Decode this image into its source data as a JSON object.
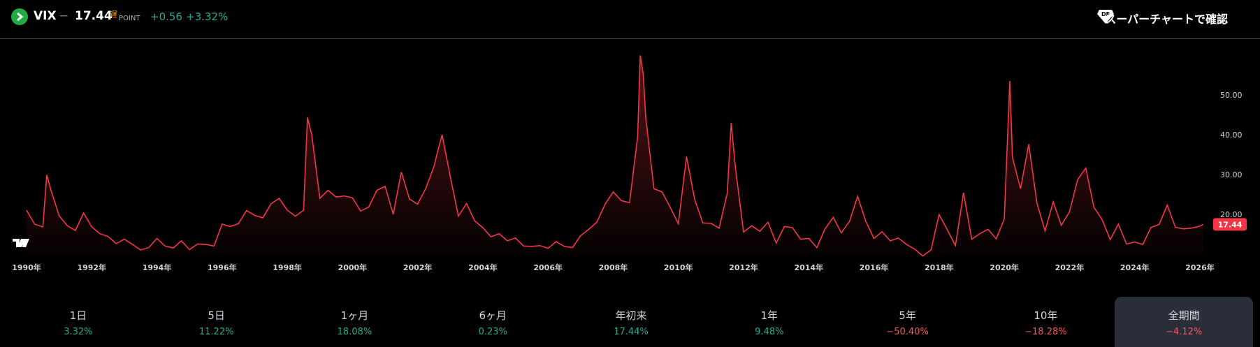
{
  "header": {
    "symbol": "VIX",
    "separator": "−",
    "price": "17.44",
    "delay_badge": "遅",
    "unit": "POINT",
    "change": "+0.56",
    "change_percent": "+3.32%",
    "cta": "スーパーチャートで確認"
  },
  "chart_data": {
    "type": "line",
    "color": "#f23645",
    "grid": false,
    "x": [
      1990,
      1990.25,
      1990.5,
      1990.62,
      1990.75,
      1991,
      1991.25,
      1991.5,
      1991.75,
      1992,
      1992.25,
      1992.5,
      1992.75,
      1993,
      1993.25,
      1993.5,
      1993.75,
      1994,
      1994.25,
      1994.5,
      1994.75,
      1995,
      1995.25,
      1995.5,
      1995.75,
      1996,
      1996.25,
      1996.5,
      1996.75,
      1997,
      1997.25,
      1997.5,
      1997.75,
      1998,
      1998.25,
      1998.5,
      1998.62,
      1998.75,
      1999,
      1999.25,
      1999.5,
      1999.75,
      2000,
      2000.25,
      2000.5,
      2000.75,
      2001,
      2001.25,
      2001.5,
      2001.75,
      2002,
      2002.25,
      2002.5,
      2002.62,
      2002.75,
      2003,
      2003.25,
      2003.5,
      2003.75,
      2004,
      2004.25,
      2004.5,
      2004.75,
      2005,
      2005.25,
      2005.5,
      2005.75,
      2006,
      2006.25,
      2006.5,
      2006.75,
      2007,
      2007.25,
      2007.5,
      2007.75,
      2008,
      2008.25,
      2008.5,
      2008.75,
      2008.83,
      2008.92,
      2009,
      2009.25,
      2009.5,
      2009.75,
      2010,
      2010.25,
      2010.5,
      2010.75,
      2011,
      2011.25,
      2011.5,
      2011.62,
      2011.75,
      2012,
      2012.25,
      2012.5,
      2012.75,
      2013,
      2013.25,
      2013.5,
      2013.75,
      2014,
      2014.25,
      2014.5,
      2014.75,
      2015,
      2015.25,
      2015.5,
      2015.75,
      2016,
      2016.25,
      2016.5,
      2016.75,
      2017,
      2017.25,
      2017.5,
      2017.75,
      2018,
      2018.25,
      2018.5,
      2018.75,
      2019,
      2019.25,
      2019.5,
      2019.75,
      2020,
      2020.17,
      2020.25,
      2020.5,
      2020.75,
      2021,
      2021.25,
      2021.5,
      2021.75,
      2022,
      2022.25,
      2022.5,
      2022.75,
      2023,
      2023.25,
      2023.5,
      2023.75,
      2024,
      2024.25,
      2024.5,
      2024.75,
      2025,
      2025.25,
      2025.5,
      2025.75,
      2026,
      2026.1
    ],
    "values": [
      21.0,
      17.5,
      16.8,
      29.9,
      26.0,
      19.6,
      17.1,
      15.9,
      20.3,
      16.8,
      15.1,
      14.4,
      12.6,
      13.7,
      12.4,
      11.0,
      11.6,
      13.9,
      12.0,
      11.5,
      13.3,
      11.1,
      12.5,
      12.4,
      12.0,
      17.5,
      16.9,
      17.6,
      20.9,
      19.7,
      19.1,
      22.6,
      24.0,
      21.0,
      19.5,
      21.0,
      44.3,
      40.0,
      24.0,
      26.0,
      24.3,
      24.6,
      24.1,
      20.8,
      21.8,
      26.0,
      27.0,
      20.0,
      30.6,
      23.8,
      22.5,
      26.5,
      32.0,
      36.0,
      40.0,
      29.5,
      19.5,
      22.7,
      18.3,
      16.6,
      14.3,
      15.1,
      13.3,
      14.0,
      12.0,
      11.9,
      12.1,
      11.4,
      13.1,
      11.9,
      11.6,
      14.6,
      16.2,
      18.0,
      22.5,
      25.6,
      23.4,
      22.9,
      39.4,
      59.9,
      55.3,
      44.1,
      26.4,
      25.6,
      21.7,
      17.6,
      34.5,
      23.7,
      17.8,
      17.7,
      16.5,
      25.3,
      43.0,
      31.6,
      15.5,
      17.1,
      15.7,
      18.0,
      12.7,
      16.9,
      16.6,
      13.7,
      13.9,
      11.6,
      16.3,
      19.2,
      15.3,
      18.2,
      24.5,
      18.2,
      13.9,
      15.6,
      13.3,
      14.0,
      12.4,
      11.2,
      9.5,
      11.0,
      19.9,
      16.1,
      12.1,
      25.4,
      13.7,
      15.1,
      16.2,
      13.8,
      18.8,
      53.5,
      34.2,
      26.4,
      37.6,
      22.8,
      15.8,
      23.1,
      17.2,
      20.6,
      28.7,
      31.6,
      21.7,
      18.7,
      13.6,
      17.5,
      12.5,
      13.0,
      12.4,
      16.7,
      17.4,
      22.3,
      16.7,
      16.3,
      16.5,
      17.0,
      17.44
    ],
    "xlim": [
      1989.55,
      2026.28
    ],
    "xticks": [
      {
        "value": 1990,
        "label": "1990年"
      },
      {
        "value": 1992,
        "label": "1992年"
      },
      {
        "value": 1994,
        "label": "1994年"
      },
      {
        "value": 1996,
        "label": "1996年"
      },
      {
        "value": 1998,
        "label": "1998年"
      },
      {
        "value": 2000,
        "label": "2000年"
      },
      {
        "value": 2002,
        "label": "2002年"
      },
      {
        "value": 2004,
        "label": "2004年"
      },
      {
        "value": 2006,
        "label": "2006年"
      },
      {
        "value": 2008,
        "label": "2008年"
      },
      {
        "value": 2010,
        "label": "2010年"
      },
      {
        "value": 2012,
        "label": "2012年"
      },
      {
        "value": 2014,
        "label": "2014年"
      },
      {
        "value": 2016,
        "label": "2016年"
      },
      {
        "value": 2018,
        "label": "2018年"
      },
      {
        "value": 2020,
        "label": "2020年"
      },
      {
        "value": 2022,
        "label": "2022年"
      },
      {
        "value": 2024,
        "label": "2024年"
      },
      {
        "value": 2026,
        "label": "2026年"
      }
    ],
    "ylim": [
      9.6,
      62.8
    ],
    "yticks": [
      {
        "value": 20,
        "label": "20.00"
      },
      {
        "value": 30,
        "label": "30.00"
      },
      {
        "value": 40,
        "label": "40.00"
      },
      {
        "value": 50,
        "label": "50.00"
      }
    ]
  },
  "periods": [
    {
      "label": "1日",
      "change": "3.32%"
    },
    {
      "label": "5日",
      "change": "11.22%"
    },
    {
      "label": "1ヶ月",
      "change": "18.08%"
    },
    {
      "label": "6ヶ月",
      "change": "0.23%"
    },
    {
      "label": "年初来",
      "change": "17.44%"
    },
    {
      "label": "1年",
      "change": "9.48%"
    },
    {
      "label": "5年",
      "change": "−50.40%"
    },
    {
      "label": "10年",
      "change": "−18.28%"
    },
    {
      "label": "全期間",
      "change": "−4.12%"
    }
  ]
}
